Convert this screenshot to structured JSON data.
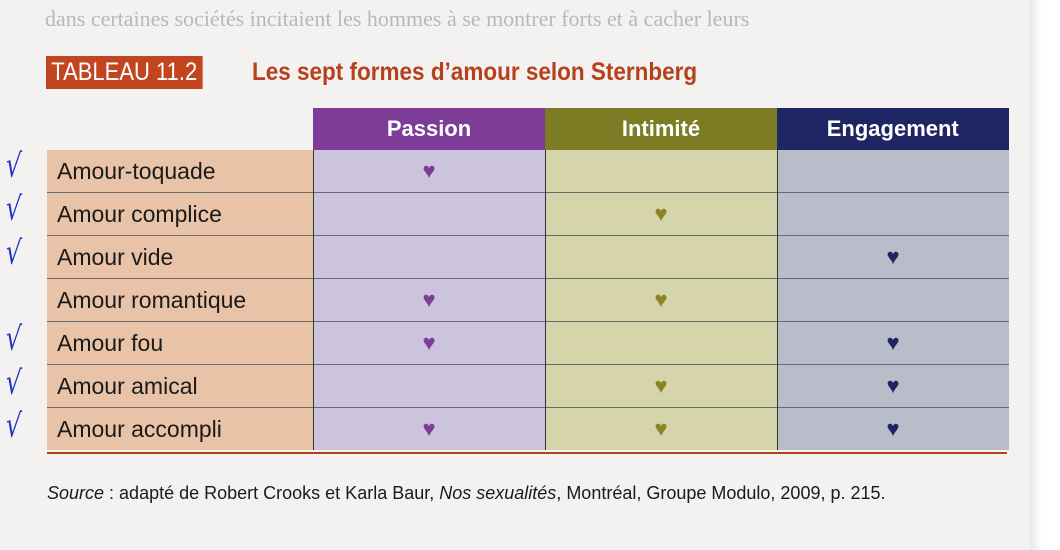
{
  "bleed_through": "dans certaines sociétés incitaient les hommes à se montrer forts et à cacher leurs",
  "table_label": "TABLEAU 11.2",
  "table_title": "Les sept formes d’amour selon Sternberg",
  "columns": [
    "Passion",
    "Intimité",
    "Engagement"
  ],
  "colors": {
    "passion": "#7c3c97",
    "intimite": "#7d7c24",
    "engagement": "#1f2562",
    "label_col": "#e8c3a8",
    "accent": "#c2451f",
    "checkmark": "#2030c8"
  },
  "heart_icon": "♥",
  "rows": [
    {
      "label": "Amour-toquade",
      "passion": true,
      "intimite": false,
      "engagement": false,
      "checked": true
    },
    {
      "label": "Amour complice",
      "passion": false,
      "intimite": true,
      "engagement": false,
      "checked": true
    },
    {
      "label": "Amour vide",
      "passion": false,
      "intimite": false,
      "engagement": true,
      "checked": true
    },
    {
      "label": "Amour romantique",
      "passion": true,
      "intimite": true,
      "engagement": false,
      "checked": false
    },
    {
      "label": "Amour fou",
      "passion": true,
      "intimite": false,
      "engagement": true,
      "checked": true
    },
    {
      "label": "Amour amical",
      "passion": false,
      "intimite": true,
      "engagement": true,
      "checked": true
    },
    {
      "label": "Amour accompli",
      "passion": true,
      "intimite": true,
      "engagement": true,
      "checked": true
    }
  ],
  "source": {
    "label": "Source",
    "text1": " : adapté de Robert Crooks et Karla Baur, ",
    "book": "Nos sexualités",
    "text2": ", Montréal, Groupe Modulo, 2009, p. 215."
  }
}
